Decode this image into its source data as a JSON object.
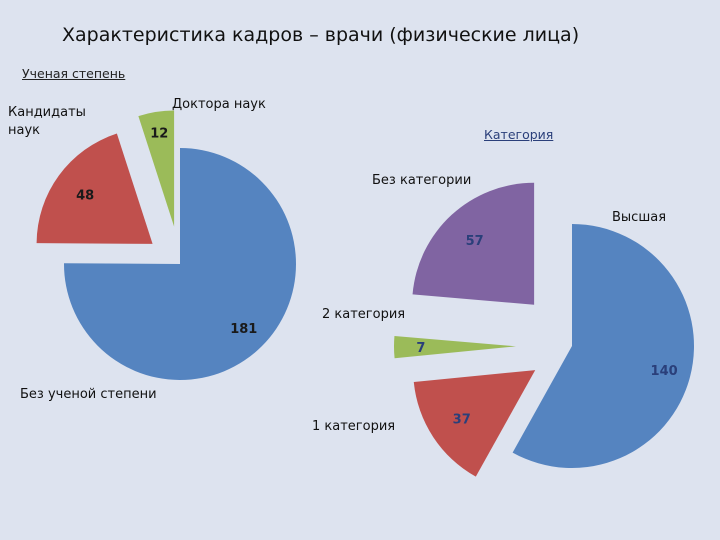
{
  "title": "Характеристика кадров – врачи (физические лица)",
  "colors": {
    "blue": "#5584c0",
    "red": "#c0504d",
    "green": "#9bbb59",
    "purple": "#8064a2",
    "background": "#dde3ef"
  },
  "chart_data": [
    {
      "type": "pie",
      "title": "Ученая степень",
      "categories": [
        "Без ученой  степени",
        "Кандидаты наук",
        "Доктора наук"
      ],
      "values": [
        181,
        48,
        12
      ],
      "data_labels": [
        "181",
        "48",
        "12"
      ],
      "exploded": true
    },
    {
      "type": "pie",
      "title": "Категория",
      "categories": [
        "Высшая",
        "1 категория",
        "2 категория",
        "Без категории"
      ],
      "values": [
        140,
        37,
        7,
        57
      ],
      "data_labels": [
        "140",
        "37",
        "7",
        "57"
      ],
      "exploded": true
    }
  ]
}
